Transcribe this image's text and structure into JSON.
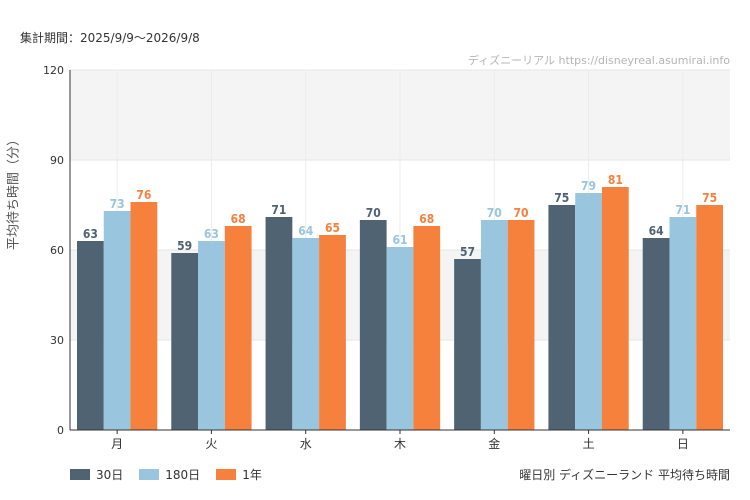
{
  "header": {
    "period": "集計期間：2025/9/9〜2026/9/8",
    "credit": "ディズニーリアル https://disneyreal.asumirai.info"
  },
  "caption": "曜日別 ディズニーランド 平均待ち時間",
  "chart_data": {
    "type": "bar",
    "ylabel": "平均待ち時間（分）",
    "xlabel": "",
    "ylim": [
      0,
      120
    ],
    "yticks": [
      0,
      30,
      60,
      90,
      120
    ],
    "categories": [
      "月",
      "火",
      "水",
      "木",
      "金",
      "土",
      "日"
    ],
    "series": [
      {
        "name": "30日",
        "color": "#4f6373",
        "values": [
          63,
          59,
          71,
          70,
          57,
          75,
          64
        ]
      },
      {
        "name": "180日",
        "color": "#99c5df",
        "values": [
          73,
          63,
          64,
          61,
          70,
          79,
          71
        ]
      },
      {
        "name": "1年",
        "color": "#f5813d",
        "values": [
          76,
          68,
          65,
          68,
          70,
          81,
          75
        ]
      }
    ],
    "grid": true,
    "legend_position": "bottom-left"
  }
}
